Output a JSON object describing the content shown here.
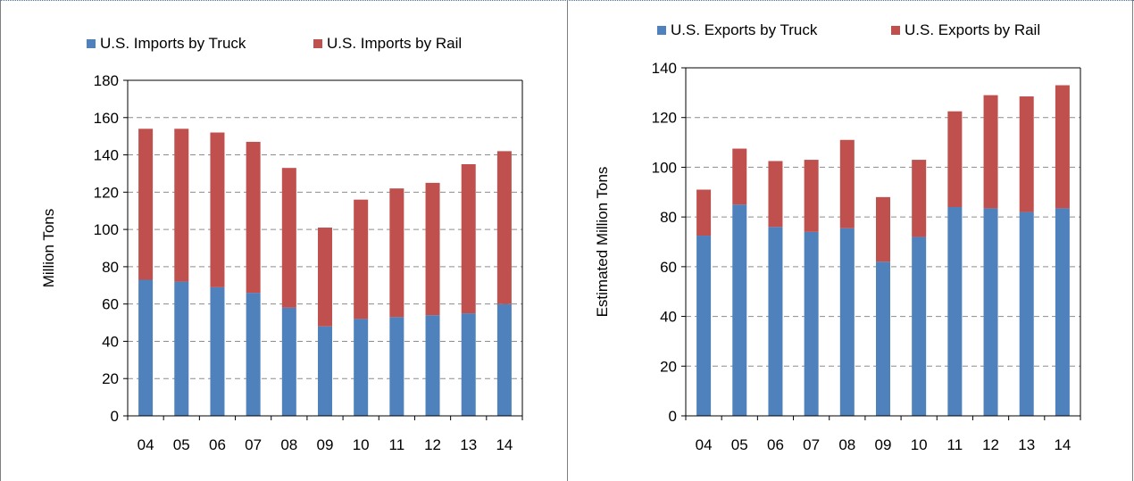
{
  "colors": {
    "truck": "#4f81bd",
    "rail": "#c0504d",
    "grid": "#8c8c8c"
  },
  "chart_data": [
    {
      "type": "bar",
      "stacked": true,
      "categories": [
        "04",
        "05",
        "06",
        "07",
        "08",
        "09",
        "10",
        "11",
        "12",
        "13",
        "14"
      ],
      "series": [
        {
          "name": "U.S. Imports by Truck",
          "color": "#4f81bd",
          "values": [
            73,
            72,
            69,
            66,
            58,
            48,
            52,
            53,
            54,
            55,
            60
          ]
        },
        {
          "name": "U.S. Imports by Rail",
          "color": "#c0504d",
          "values": [
            81,
            82,
            83,
            81,
            75,
            53,
            64,
            69,
            71,
            80,
            82
          ]
        }
      ],
      "title": "",
      "xlabel": "",
      "ylabel": "Million Tons",
      "ylim": [
        0,
        180
      ],
      "yticks": [
        0,
        20,
        40,
        60,
        80,
        100,
        120,
        140,
        160,
        180
      ],
      "grid": true,
      "legend": "top"
    },
    {
      "type": "bar",
      "stacked": true,
      "categories": [
        "04",
        "05",
        "06",
        "07",
        "08",
        "09",
        "10",
        "11",
        "12",
        "13",
        "14"
      ],
      "series": [
        {
          "name": "U.S. Exports by Truck",
          "color": "#4f81bd",
          "values": [
            72.5,
            85,
            76,
            74,
            75.5,
            62,
            72,
            84,
            83.5,
            82,
            83.5
          ]
        },
        {
          "name": "U.S. Exports by Rail",
          "color": "#c0504d",
          "values": [
            18.5,
            22.5,
            26.5,
            29,
            35.5,
            26,
            31,
            38.5,
            45.5,
            46.5,
            49.5
          ]
        }
      ],
      "title": "",
      "xlabel": "",
      "ylabel": "Estimated Million Tons",
      "ylim": [
        0,
        140
      ],
      "yticks": [
        0,
        20,
        40,
        60,
        80,
        100,
        120,
        140
      ],
      "grid": true,
      "legend": "top"
    }
  ]
}
